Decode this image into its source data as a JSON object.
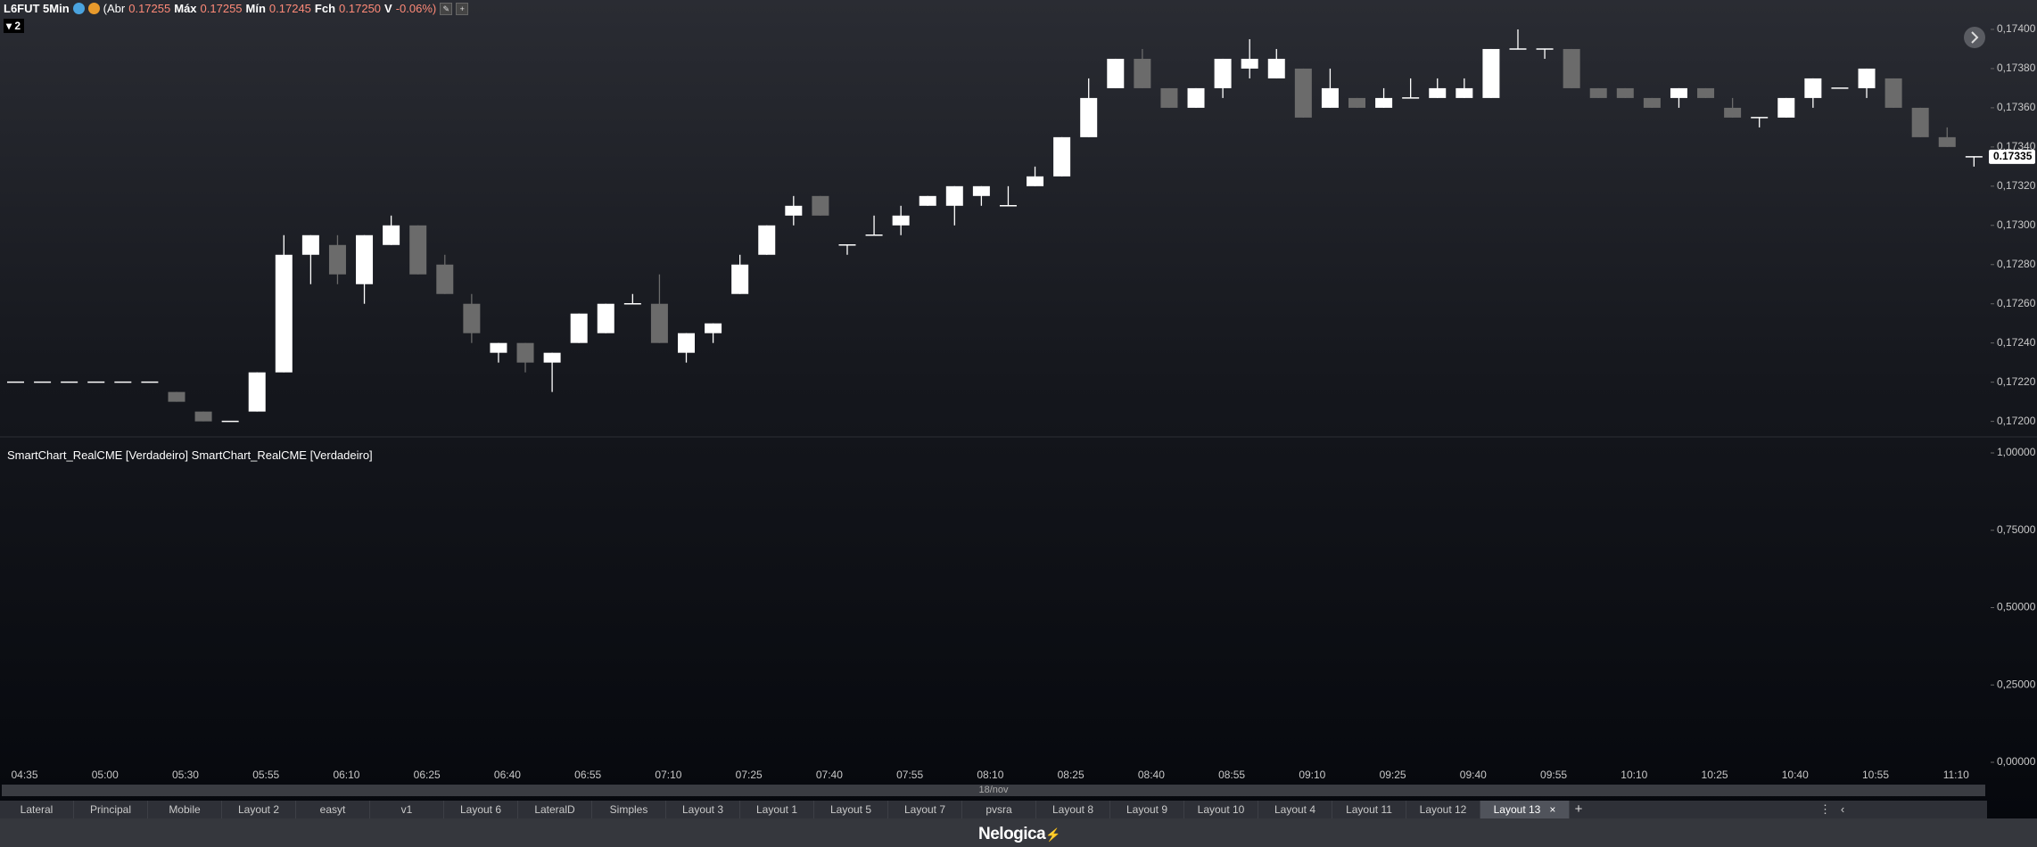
{
  "header": {
    "symbol": "L6FUT 5Min",
    "open_label": "(Abr",
    "open": "0.17255",
    "high_label": "Máx",
    "high": "0.17255",
    "low_label": "Mín",
    "low": "0.17245",
    "close_label": "Fch",
    "close": "0.17250",
    "change_label": "V",
    "change": "-0.06%)",
    "badge": "2"
  },
  "chart_data": {
    "type": "candlestick",
    "categories": [
      "04:35",
      null,
      null,
      "05:00",
      null,
      null,
      "05:30",
      null,
      null,
      "05:55",
      null,
      null,
      "06:10",
      null,
      null,
      "06:25",
      null,
      null,
      "06:40",
      null,
      null,
      "06:55",
      null,
      null,
      "07:10",
      null,
      null,
      "07:25",
      null,
      null,
      "07:40",
      null,
      null,
      "07:55",
      null,
      null,
      "08:10",
      null,
      null,
      "08:25",
      null,
      null,
      "08:40",
      null,
      null,
      "08:55",
      null,
      null,
      "09:10",
      null,
      null,
      "09:25",
      null,
      null,
      "09:40",
      null,
      null,
      "09:55",
      null,
      null,
      "10:10",
      null,
      null,
      "10:25",
      null,
      null,
      "10:40",
      null,
      null,
      "10:55",
      null,
      null,
      "11:10",
      null
    ],
    "open": [
      0.1722,
      0.1722,
      0.1722,
      0.1722,
      0.1722,
      0.1722,
      0.17215,
      0.17205,
      0.172,
      0.17205,
      0.17225,
      0.17285,
      0.1729,
      0.1727,
      0.1729,
      0.173,
      0.1728,
      0.1726,
      0.17235,
      0.1724,
      0.1723,
      0.1724,
      0.17245,
      0.1726,
      0.1726,
      0.17235,
      0.17245,
      0.17265,
      0.17285,
      0.17305,
      0.17315,
      0.1729,
      0.17295,
      0.173,
      0.1731,
      0.1731,
      0.17315,
      0.1731,
      0.1732,
      0.17325,
      0.17345,
      0.1737,
      0.17385,
      0.1737,
      0.1736,
      0.1737,
      0.1738,
      0.17375,
      0.1738,
      0.1736,
      0.17365,
      0.1736,
      0.17365,
      0.17365,
      0.17365,
      0.17365,
      0.1739,
      0.1739,
      0.1739,
      0.1737,
      0.1737,
      0.17365,
      0.17365,
      0.1737,
      0.1736,
      0.17355,
      0.17355,
      0.17365,
      0.1737,
      0.1737,
      0.17375,
      0.1736,
      0.17345,
      0.17335
    ],
    "high": [
      0.1722,
      0.1722,
      0.1722,
      0.1722,
      0.1722,
      0.1722,
      0.17215,
      0.17205,
      0.172,
      0.17225,
      0.17295,
      0.17295,
      0.17295,
      0.17295,
      0.17305,
      0.173,
      0.17285,
      0.17265,
      0.1724,
      0.1724,
      0.17235,
      0.17255,
      0.1726,
      0.17265,
      0.17275,
      0.17245,
      0.1725,
      0.17285,
      0.173,
      0.17315,
      0.17315,
      0.1729,
      0.17305,
      0.1731,
      0.17315,
      0.1732,
      0.1732,
      0.1732,
      0.1733,
      0.17345,
      0.17375,
      0.17385,
      0.1739,
      0.1737,
      0.1737,
      0.17385,
      0.17395,
      0.1739,
      0.1738,
      0.1738,
      0.17365,
      0.1737,
      0.17375,
      0.17375,
      0.17375,
      0.1739,
      0.174,
      0.1739,
      0.1739,
      0.1737,
      0.1737,
      0.17365,
      0.1737,
      0.1737,
      0.17365,
      0.17355,
      0.17365,
      0.17375,
      0.1737,
      0.1738,
      0.17375,
      0.1736,
      0.1735,
      0.17335
    ],
    "low": [
      0.1722,
      0.1722,
      0.1722,
      0.1722,
      0.1722,
      0.1722,
      0.1721,
      0.172,
      0.172,
      0.17205,
      0.17225,
      0.1727,
      0.1727,
      0.1726,
      0.1729,
      0.17275,
      0.17265,
      0.1724,
      0.1723,
      0.17225,
      0.17215,
      0.1724,
      0.17245,
      0.1726,
      0.1724,
      0.1723,
      0.1724,
      0.17265,
      0.17285,
      0.173,
      0.17305,
      0.17285,
      0.17295,
      0.17295,
      0.1731,
      0.173,
      0.1731,
      0.1731,
      0.1732,
      0.17325,
      0.17345,
      0.1737,
      0.1737,
      0.1736,
      0.1736,
      0.17365,
      0.17375,
      0.17375,
      0.17355,
      0.1736,
      0.1736,
      0.1736,
      0.17365,
      0.17365,
      0.17365,
      0.17365,
      0.1739,
      0.17385,
      0.1737,
      0.17365,
      0.17365,
      0.1736,
      0.1736,
      0.17365,
      0.17355,
      0.1735,
      0.17355,
      0.1736,
      0.1737,
      0.17365,
      0.1736,
      0.17345,
      0.1734,
      0.1733
    ],
    "close": [
      0.1722,
      0.1722,
      0.1722,
      0.1722,
      0.1722,
      0.1722,
      0.1721,
      0.172,
      0.172,
      0.17225,
      0.17285,
      0.17295,
      0.17275,
      0.17295,
      0.173,
      0.17275,
      0.17265,
      0.17245,
      0.1724,
      0.1723,
      0.17235,
      0.17255,
      0.1726,
      0.1726,
      0.1724,
      0.17245,
      0.1725,
      0.1728,
      0.173,
      0.1731,
      0.17305,
      0.1729,
      0.17295,
      0.17305,
      0.17315,
      0.1732,
      0.1732,
      0.1731,
      0.17325,
      0.17345,
      0.17365,
      0.17385,
      0.1737,
      0.1736,
      0.1737,
      0.17385,
      0.17385,
      0.17385,
      0.17355,
      0.1737,
      0.1736,
      0.17365,
      0.17365,
      0.1737,
      0.1737,
      0.1739,
      0.1739,
      0.1739,
      0.1737,
      0.17365,
      0.17365,
      0.1736,
      0.1737,
      0.17365,
      0.17355,
      0.17355,
      0.17365,
      0.17375,
      0.1737,
      0.1738,
      0.1736,
      0.17345,
      0.1734,
      0.17335
    ],
    "up_color": "#ffffff",
    "down_color": "#6b6b6b",
    "ylim": [
      0.17193,
      0.17415
    ],
    "yticks": [
      {
        "value": 0.174,
        "label": "0,17400"
      },
      {
        "value": 0.1738,
        "label": "0,17380"
      },
      {
        "value": 0.1736,
        "label": "0,17360"
      },
      {
        "value": 0.1734,
        "label": "0,17340"
      },
      {
        "value": 0.1732,
        "label": "0,17320"
      },
      {
        "value": 0.173,
        "label": "0,17300"
      },
      {
        "value": 0.1728,
        "label": "0,17280"
      },
      {
        "value": 0.1726,
        "label": "0,17260"
      },
      {
        "value": 0.1724,
        "label": "0,17240"
      },
      {
        "value": 0.1722,
        "label": "0,17220"
      },
      {
        "value": 0.172,
        "label": "0,17200"
      }
    ],
    "last_price": 0.17335,
    "grid": false
  },
  "indicator": {
    "label": "SmartChart_RealCME [Verdadeiro] SmartChart_RealCME [Verdadeiro]",
    "ylim": [
      0,
      1
    ],
    "yticks": [
      {
        "value": 1,
        "label": "1,00000"
      },
      {
        "value": 0.75,
        "label": "0,75000"
      },
      {
        "value": 0.5,
        "label": "0,50000"
      },
      {
        "value": 0.25,
        "label": "0,25000"
      },
      {
        "value": 0,
        "label": "0,00000"
      }
    ]
  },
  "date_label": "18/nov",
  "tabs": [
    "Lateral",
    "Principal",
    "Mobile",
    "Layout 2",
    "easyt",
    "v1",
    "Layout 6",
    "LateralD",
    "Simples",
    "Layout 3",
    "Layout 1",
    "Layout 5",
    "Layout 7",
    "pvsra",
    "Layout 8",
    "Layout 9",
    "Layout 10",
    "Layout 4",
    "Layout 11",
    "Layout 12",
    "Layout 13"
  ],
  "active_tab": "Layout 13",
  "footer": {
    "brand": "Nelogica"
  }
}
